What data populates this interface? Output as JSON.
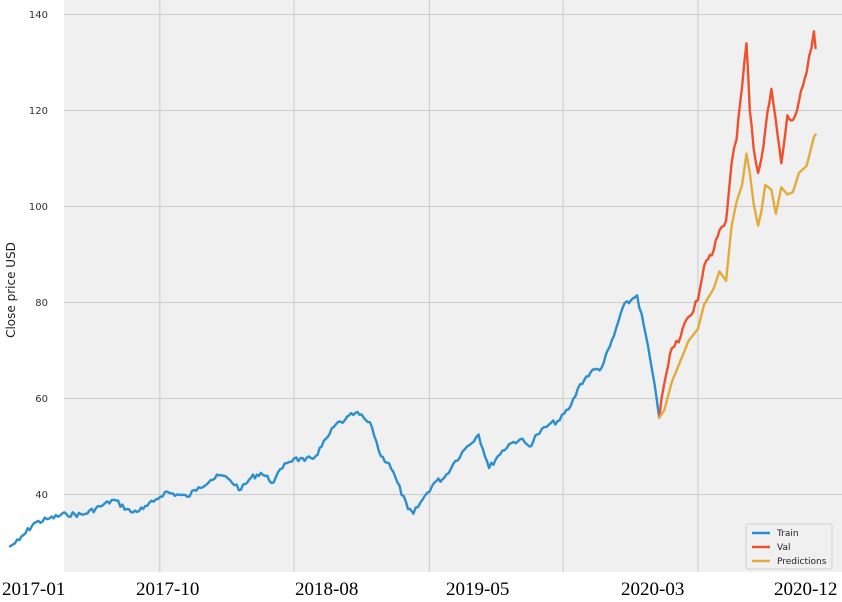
{
  "chart_data": {
    "type": "line",
    "title": "",
    "xlabel": "",
    "ylabel": "Close price USD",
    "ylim": [
      26,
      142
    ],
    "yticks": [
      40,
      60,
      80,
      100,
      120,
      140
    ],
    "xticks": [
      "2017-01",
      "2017-10",
      "2018-08",
      "2019-05",
      "2020-03",
      "2020-12"
    ],
    "grid": true,
    "legend": "bottom-right",
    "colors": {
      "Train": "#2b8fcf",
      "Val": "#f0512d",
      "Predictions": "#e4ab3c"
    },
    "series": [
      {
        "name": "Train",
        "x": [
          "2017-01-03",
          "2017-01-20",
          "2017-02-15",
          "2017-03-15",
          "2017-04-15",
          "2017-05-15",
          "2017-06-15",
          "2017-07-10",
          "2017-08-10",
          "2017-09-01",
          "2017-09-20",
          "2017-10-10",
          "2017-11-01",
          "2017-11-20",
          "2017-12-10",
          "2018-01-01",
          "2018-01-20",
          "2018-02-05",
          "2018-02-25",
          "2018-03-15",
          "2018-04-02",
          "2018-04-25",
          "2018-05-15",
          "2018-06-01",
          "2018-06-20",
          "2018-07-10",
          "2018-08-01",
          "2018-08-15",
          "2018-09-01",
          "2018-09-20",
          "2018-10-05",
          "2018-10-20",
          "2018-11-05",
          "2018-11-20",
          "2018-12-05",
          "2018-12-24",
          "2019-01-03",
          "2019-01-20",
          "2019-02-10",
          "2019-02-28",
          "2019-03-20",
          "2019-04-10",
          "2019-05-01",
          "2019-05-20",
          "2019-06-05",
          "2019-06-25",
          "2019-07-15",
          "2019-08-01",
          "2019-08-15",
          "2019-09-05",
          "2019-09-25",
          "2019-10-15",
          "2019-11-01",
          "2019-11-20",
          "2019-12-10",
          "2020-01-01",
          "2020-01-17",
          "2020-02-01",
          "2020-02-12",
          "2020-02-28",
          "2020-03-10",
          "2020-03-23"
        ],
        "values": [
          29.2,
          30.5,
          34.0,
          35.0,
          35.9,
          35.8,
          37.5,
          38.9,
          36.3,
          37.0,
          38.5,
          40.5,
          40.0,
          39.5,
          41.5,
          43.0,
          44.0,
          43.0,
          41.0,
          43.5,
          44.5,
          42.5,
          46.5,
          47.5,
          47.0,
          48.0,
          52.0,
          54.5,
          55.5,
          57.0,
          56.0,
          54.0,
          48.0,
          46.5,
          42.5,
          37.0,
          36.0,
          39.0,
          42.5,
          43.5,
          47.0,
          50.0,
          52.5,
          45.5,
          48.0,
          50.5,
          51.5,
          50.0,
          52.5,
          54.5,
          55.5,
          58.5,
          63.0,
          65.5,
          66.5,
          73.0,
          79.0,
          80.5,
          81.5,
          73.0,
          66.0,
          56.0
        ]
      },
      {
        "name": "Val",
        "x": [
          "2020-03-23",
          "2020-04-01",
          "2020-04-15",
          "2020-05-01",
          "2020-05-15",
          "2020-06-01",
          "2020-06-12",
          "2020-06-30",
          "2020-07-10",
          "2020-07-22",
          "2020-08-01",
          "2020-08-10",
          "2020-08-20",
          "2020-08-28",
          "2020-09-03",
          "2020-09-10",
          "2020-09-18",
          "2020-09-24",
          "2020-10-01",
          "2020-10-12",
          "2020-10-20",
          "2020-10-30",
          "2020-11-10",
          "2020-11-20",
          "2020-12-01",
          "2020-12-15",
          "2020-12-28",
          "2020-12-31"
        ],
        "values": [
          56.0,
          63.0,
          70.5,
          73.0,
          77.0,
          80.5,
          87.5,
          91.0,
          95.0,
          97.0,
          109.0,
          114.0,
          125.0,
          134.0,
          120.0,
          112.0,
          107.0,
          110.0,
          116.0,
          124.5,
          118.0,
          109.0,
          119.0,
          118.0,
          122.0,
          128.0,
          136.5,
          133.0
        ]
      },
      {
        "name": "Predictions",
        "x": [
          "2020-03-23",
          "2020-04-01",
          "2020-04-15",
          "2020-05-01",
          "2020-05-15",
          "2020-06-01",
          "2020-06-12",
          "2020-06-30",
          "2020-07-10",
          "2020-07-22",
          "2020-08-01",
          "2020-08-10",
          "2020-08-20",
          "2020-08-28",
          "2020-09-03",
          "2020-09-10",
          "2020-09-18",
          "2020-09-24",
          "2020-10-01",
          "2020-10-12",
          "2020-10-20",
          "2020-10-30",
          "2020-11-10",
          "2020-11-20",
          "2020-12-01",
          "2020-12-15",
          "2020-12-28",
          "2020-12-31"
        ],
        "values": [
          56.0,
          57.5,
          63.5,
          68.0,
          72.0,
          74.5,
          79.5,
          83.0,
          86.5,
          84.5,
          96.0,
          101.0,
          104.5,
          111.0,
          107.0,
          100.5,
          96.0,
          99.0,
          104.5,
          103.5,
          98.5,
          104.0,
          102.5,
          103.0,
          107.0,
          108.5,
          114.5,
          115.0
        ]
      }
    ]
  }
}
